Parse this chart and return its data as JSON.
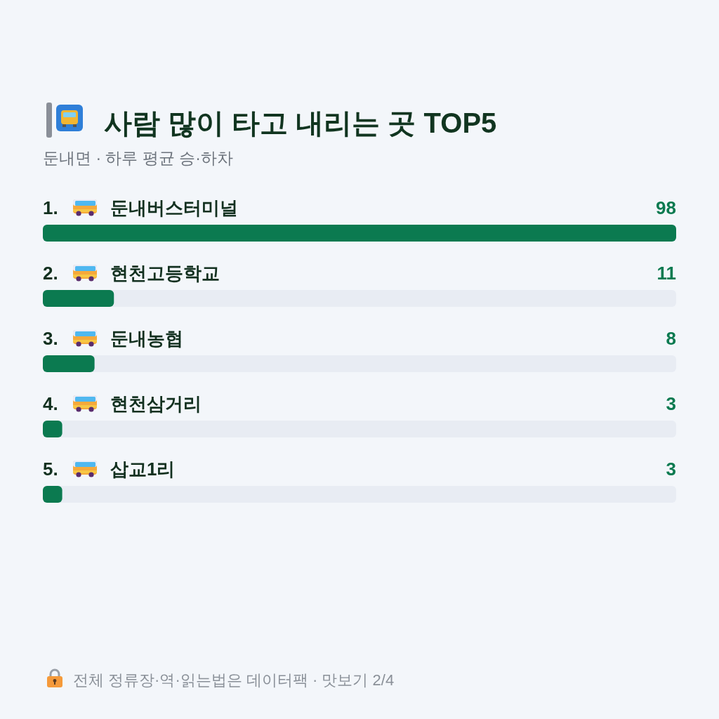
{
  "chart_data": {
    "type": "bar",
    "orientation": "horizontal",
    "title": "사람 많이 타고 내리는 곳 TOP5",
    "subtitle": "둔내면 · 하루 평균 승·하차",
    "categories": [
      "1. 둔내버스터미널",
      "2. 현천고등학교",
      "3. 둔내농협",
      "4. 현천삼거리",
      "5. 삽교1리"
    ],
    "values": [
      98,
      11,
      8,
      3,
      3
    ],
    "color": "#0b7a50",
    "data_labels": true,
    "annotations": [
      "전체 정류장·역·읽는법은 데이터팩 · 맛보기 2/4"
    ]
  }
}
